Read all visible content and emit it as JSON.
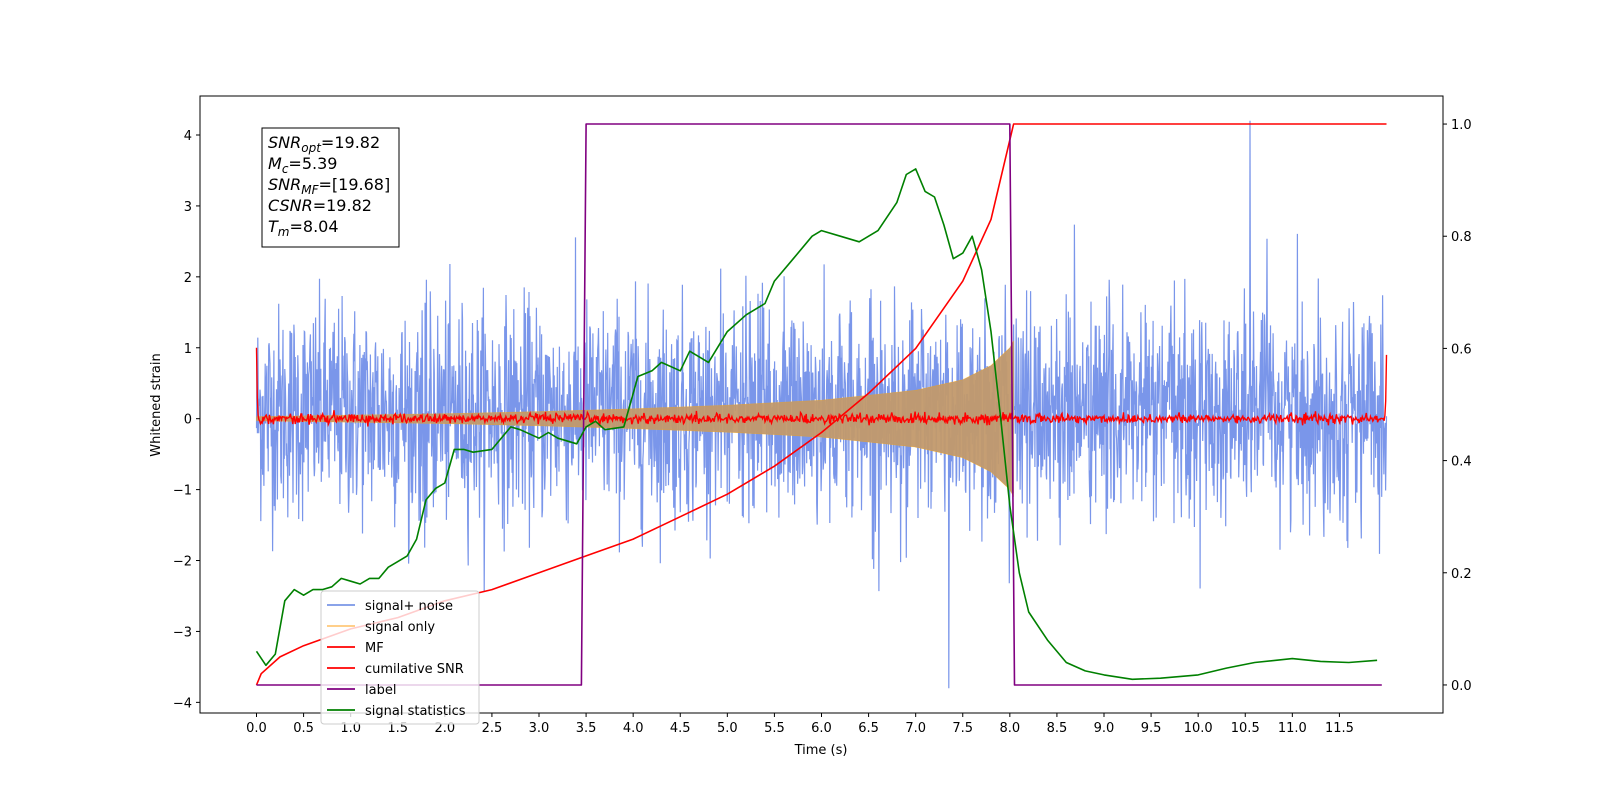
{
  "chart_data": {
    "type": "line",
    "xlabel": "Time (s)",
    "ylabel": "Whitened strain",
    "xlim": [
      -0.6,
      12.6
    ],
    "ylim": [
      -4.15,
      4.55
    ],
    "y2lim": [
      -0.05,
      1.05
    ],
    "x_ticks": [
      0.0,
      0.5,
      1.0,
      1.5,
      2.0,
      2.5,
      3.0,
      3.5,
      4.0,
      4.5,
      5.0,
      5.5,
      6.0,
      6.5,
      7.0,
      7.5,
      8.0,
      8.5,
      9.0,
      9.5,
      10.0,
      10.5,
      11.0,
      11.5
    ],
    "x_tick_labels": [
      "0.0",
      "0.5",
      "1.0",
      "1.5",
      "2.0",
      "2.5",
      "3.0",
      "3.5",
      "4.0",
      "4.5",
      "5.0",
      "5.5",
      "6.0",
      "6.5",
      "7.0",
      "7.5",
      "8.0",
      "8.5",
      "9.0",
      "9.5",
      "10.0",
      "10.5",
      "11.0",
      "11.5"
    ],
    "y_ticks": [
      -4,
      -3,
      -2,
      -1,
      0,
      1,
      2,
      3,
      4
    ],
    "y_tick_labels": [
      "−4",
      "−3",
      "−2",
      "−1",
      "0",
      "1",
      "2",
      "3",
      "4"
    ],
    "y2_ticks": [
      0.0,
      0.2,
      0.4,
      0.6,
      0.8,
      1.0
    ],
    "y2_tick_labels": [
      "0.0",
      "0.2",
      "0.4",
      "0.6",
      "0.8",
      "1.0"
    ],
    "grid": false,
    "legend_position": "lower-left",
    "series": [
      {
        "name": "signal+ noise",
        "axis": "left",
        "color": "#4169e1",
        "kind": "noise",
        "x_range": [
          0.0,
          12.0
        ],
        "typical_envelope": [
          -1.6,
          1.9
        ],
        "max_value": 4.2,
        "min_value": -3.8
      },
      {
        "name": "signal only",
        "axis": "left",
        "color": "#ffa500",
        "kind": "chirp",
        "x_range": [
          0.0,
          8.04
        ],
        "envelope": [
          {
            "x": 0.0,
            "y": 0.03
          },
          {
            "x": 1.0,
            "y": 0.05
          },
          {
            "x": 2.0,
            "y": 0.07
          },
          {
            "x": 3.0,
            "y": 0.1
          },
          {
            "x": 4.0,
            "y": 0.14
          },
          {
            "x": 5.0,
            "y": 0.19
          },
          {
            "x": 6.0,
            "y": 0.26
          },
          {
            "x": 7.0,
            "y": 0.4
          },
          {
            "x": 7.5,
            "y": 0.55
          },
          {
            "x": 7.8,
            "y": 0.75
          },
          {
            "x": 8.0,
            "y": 1.0
          },
          {
            "x": 8.04,
            "y": 1.1
          }
        ]
      },
      {
        "name": "MF",
        "axis": "left",
        "color": "#ff0000",
        "kind": "noise",
        "x_range": [
          0.0,
          12.0
        ],
        "typical_envelope": [
          -0.08,
          0.1
        ],
        "edge_values": [
          {
            "x": 0.0,
            "y": 1.0
          },
          {
            "x": 12.0,
            "y": 0.9
          }
        ]
      },
      {
        "name": "cumilative SNR",
        "axis": "right",
        "color": "#ff0000",
        "points": [
          {
            "x": 0.0,
            "y": 0.0
          },
          {
            "x": 0.05,
            "y": 0.02
          },
          {
            "x": 0.25,
            "y": 0.05
          },
          {
            "x": 0.5,
            "y": 0.07
          },
          {
            "x": 1.0,
            "y": 0.1
          },
          {
            "x": 1.5,
            "y": 0.12
          },
          {
            "x": 2.0,
            "y": 0.15
          },
          {
            "x": 2.5,
            "y": 0.17
          },
          {
            "x": 3.0,
            "y": 0.2
          },
          {
            "x": 3.5,
            "y": 0.23
          },
          {
            "x": 4.0,
            "y": 0.26
          },
          {
            "x": 4.5,
            "y": 0.3
          },
          {
            "x": 5.0,
            "y": 0.34
          },
          {
            "x": 5.5,
            "y": 0.39
          },
          {
            "x": 6.0,
            "y": 0.45
          },
          {
            "x": 6.5,
            "y": 0.52
          },
          {
            "x": 7.0,
            "y": 0.6
          },
          {
            "x": 7.5,
            "y": 0.72
          },
          {
            "x": 7.8,
            "y": 0.83
          },
          {
            "x": 8.04,
            "y": 1.0
          },
          {
            "x": 12.0,
            "y": 1.0
          }
        ]
      },
      {
        "name": "label",
        "axis": "right",
        "color": "#800080",
        "points": [
          {
            "x": 0.0,
            "y": 0.0
          },
          {
            "x": 3.45,
            "y": 0.0
          },
          {
            "x": 3.5,
            "y": 1.0
          },
          {
            "x": 8.0,
            "y": 1.0
          },
          {
            "x": 8.05,
            "y": 0.0
          },
          {
            "x": 11.95,
            "y": 0.0
          }
        ]
      },
      {
        "name": "signal statistics",
        "axis": "right",
        "color": "#008000",
        "points": [
          {
            "x": 0.0,
            "y": 0.06
          },
          {
            "x": 0.1,
            "y": 0.035
          },
          {
            "x": 0.2,
            "y": 0.055
          },
          {
            "x": 0.3,
            "y": 0.15
          },
          {
            "x": 0.4,
            "y": 0.17
          },
          {
            "x": 0.5,
            "y": 0.16
          },
          {
            "x": 0.6,
            "y": 0.17
          },
          {
            "x": 0.7,
            "y": 0.17
          },
          {
            "x": 0.8,
            "y": 0.175
          },
          {
            "x": 0.9,
            "y": 0.19
          },
          {
            "x": 1.0,
            "y": 0.185
          },
          {
            "x": 1.1,
            "y": 0.18
          },
          {
            "x": 1.2,
            "y": 0.19
          },
          {
            "x": 1.3,
            "y": 0.19
          },
          {
            "x": 1.4,
            "y": 0.21
          },
          {
            "x": 1.5,
            "y": 0.22
          },
          {
            "x": 1.6,
            "y": 0.23
          },
          {
            "x": 1.7,
            "y": 0.26
          },
          {
            "x": 1.8,
            "y": 0.33
          },
          {
            "x": 1.9,
            "y": 0.35
          },
          {
            "x": 2.0,
            "y": 0.36
          },
          {
            "x": 2.1,
            "y": 0.42
          },
          {
            "x": 2.2,
            "y": 0.42
          },
          {
            "x": 2.3,
            "y": 0.415
          },
          {
            "x": 2.5,
            "y": 0.42
          },
          {
            "x": 2.7,
            "y": 0.46
          },
          {
            "x": 2.8,
            "y": 0.455
          },
          {
            "x": 3.0,
            "y": 0.44
          },
          {
            "x": 3.1,
            "y": 0.45
          },
          {
            "x": 3.2,
            "y": 0.44
          },
          {
            "x": 3.4,
            "y": 0.43
          },
          {
            "x": 3.5,
            "y": 0.46
          },
          {
            "x": 3.6,
            "y": 0.47
          },
          {
            "x": 3.7,
            "y": 0.455
          },
          {
            "x": 3.9,
            "y": 0.46
          },
          {
            "x": 4.05,
            "y": 0.55
          },
          {
            "x": 4.2,
            "y": 0.56
          },
          {
            "x": 4.3,
            "y": 0.575
          },
          {
            "x": 4.5,
            "y": 0.56
          },
          {
            "x": 4.6,
            "y": 0.595
          },
          {
            "x": 4.8,
            "y": 0.575
          },
          {
            "x": 5.0,
            "y": 0.63
          },
          {
            "x": 5.2,
            "y": 0.66
          },
          {
            "x": 5.4,
            "y": 0.68
          },
          {
            "x": 5.5,
            "y": 0.72
          },
          {
            "x": 5.7,
            "y": 0.76
          },
          {
            "x": 5.9,
            "y": 0.8
          },
          {
            "x": 6.0,
            "y": 0.81
          },
          {
            "x": 6.2,
            "y": 0.8
          },
          {
            "x": 6.4,
            "y": 0.79
          },
          {
            "x": 6.5,
            "y": 0.8
          },
          {
            "x": 6.6,
            "y": 0.81
          },
          {
            "x": 6.8,
            "y": 0.86
          },
          {
            "x": 6.9,
            "y": 0.91
          },
          {
            "x": 7.0,
            "y": 0.92
          },
          {
            "x": 7.1,
            "y": 0.88
          },
          {
            "x": 7.2,
            "y": 0.87
          },
          {
            "x": 7.3,
            "y": 0.82
          },
          {
            "x": 7.4,
            "y": 0.76
          },
          {
            "x": 7.5,
            "y": 0.77
          },
          {
            "x": 7.6,
            "y": 0.8
          },
          {
            "x": 7.7,
            "y": 0.74
          },
          {
            "x": 7.8,
            "y": 0.63
          },
          {
            "x": 7.9,
            "y": 0.48
          },
          {
            "x": 8.0,
            "y": 0.32
          },
          {
            "x": 8.1,
            "y": 0.2
          },
          {
            "x": 8.2,
            "y": 0.13
          },
          {
            "x": 8.4,
            "y": 0.08
          },
          {
            "x": 8.6,
            "y": 0.04
          },
          {
            "x": 8.8,
            "y": 0.025
          },
          {
            "x": 9.0,
            "y": 0.018
          },
          {
            "x": 9.3,
            "y": 0.01
          },
          {
            "x": 9.6,
            "y": 0.012
          },
          {
            "x": 10.0,
            "y": 0.018
          },
          {
            "x": 10.3,
            "y": 0.03
          },
          {
            "x": 10.6,
            "y": 0.04
          },
          {
            "x": 11.0,
            "y": 0.047
          },
          {
            "x": 11.3,
            "y": 0.042
          },
          {
            "x": 11.6,
            "y": 0.04
          },
          {
            "x": 11.9,
            "y": 0.044
          }
        ]
      }
    ],
    "annotation": {
      "lines": [
        {
          "name": "SNR",
          "sub": "opt",
          "text": "=19.82"
        },
        {
          "name": "M",
          "sub": "c",
          "text": "=5.39"
        },
        {
          "name": "SNR",
          "sub": "MF",
          "text": "=[19.68]"
        },
        {
          "name": "CSNR",
          "sub": "",
          "text": "=19.82"
        },
        {
          "name": "T",
          "sub": "m",
          "text": "=8.04"
        }
      ]
    }
  }
}
